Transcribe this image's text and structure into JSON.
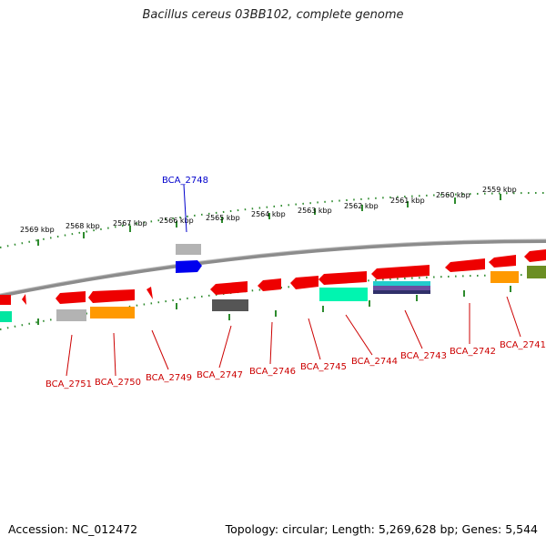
{
  "title": "Bacillus cereus 03BB102, complete genome",
  "accession_text": "Accession: NC_012472",
  "topology_text": "Topology: circular; Length: 5,269,628 bp; Genes: 5,544",
  "colors": {
    "backbone": "#8c8c8c",
    "tick": "#2e8b2e",
    "label_bottom": "#cc0000",
    "label_top": "#0000cc",
    "gene_fwd": "#ff0000"
  },
  "scale": {
    "labels": [
      "2569 kbp",
      "2568 kbp",
      "2567 kbp",
      "2566 kbp",
      "2565 kbp",
      "2564 kbp",
      "2563 kbp",
      "2562 kbp",
      "2561 kbp",
      "2560 kbp",
      "2559 kbp"
    ]
  },
  "top_labels": [
    "BCA_2748"
  ],
  "bottom_labels": [
    "BCA_2751",
    "BCA_2750",
    "BCA_2749",
    "BCA_2747",
    "BCA_2746",
    "BCA_2745",
    "BCA_2744",
    "BCA_2743",
    "BCA_2742",
    "BCA_2741"
  ]
}
